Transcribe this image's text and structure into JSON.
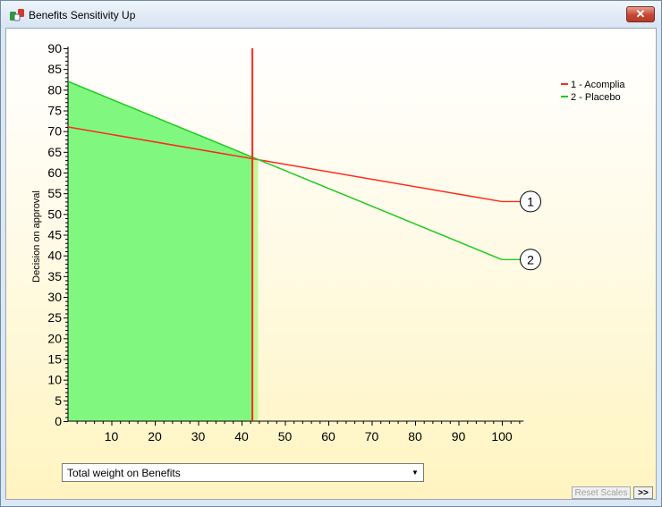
{
  "window": {
    "title": "Benefits Sensitivity Up",
    "close_label": "✕"
  },
  "controls": {
    "dropdown_value": "Total weight on Benefits",
    "reset_scales_label": "Reset Scales",
    "next_label": ">>"
  },
  "colors": {
    "acomplia": "#ff2a1a",
    "placebo": "#1ecb1e",
    "fill_placebo": "#80f880",
    "fill_light": "#c4f79a"
  },
  "chart_data": {
    "type": "line",
    "ylabel": "Decision on approval",
    "xlabel": "",
    "xlim": [
      0,
      105
    ],
    "ylim": [
      0,
      90
    ],
    "x_ticks": [
      10,
      20,
      30,
      40,
      50,
      60,
      70,
      80,
      90,
      100
    ],
    "y_ticks": [
      0,
      5,
      10,
      15,
      20,
      25,
      30,
      35,
      40,
      45,
      50,
      55,
      60,
      65,
      70,
      75,
      80,
      85,
      90
    ],
    "series": [
      {
        "name": "1 - Acomplia",
        "marker": "1",
        "x": [
          0,
          100
        ],
        "y": [
          71,
          53
        ]
      },
      {
        "name": "2 - Placebo",
        "marker": "2",
        "x": [
          0,
          100
        ],
        "y": [
          82,
          39
        ]
      }
    ],
    "reference_line_x": 42.5,
    "reference_line_top": 90,
    "crossover_x": 43.8,
    "legend_position": "top-right"
  }
}
